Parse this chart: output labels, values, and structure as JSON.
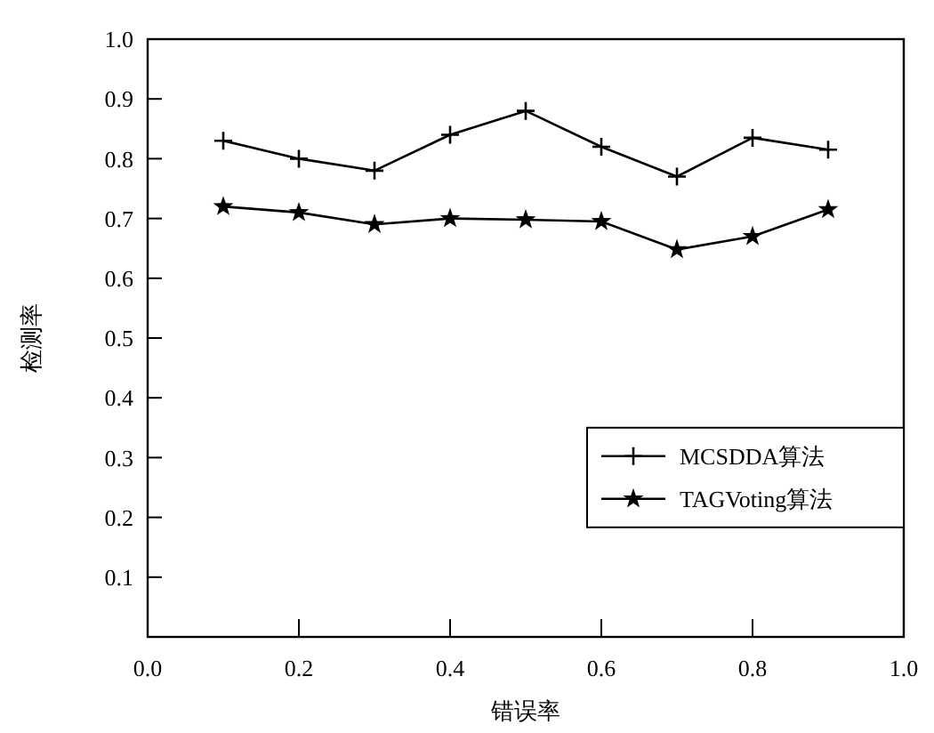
{
  "chart_data": {
    "type": "line",
    "xlabel": "错误率",
    "ylabel": "检测率",
    "x": [
      0.1,
      0.2,
      0.3,
      0.4,
      0.5,
      0.6,
      0.7,
      0.8,
      0.9
    ],
    "series": [
      {
        "name": "MCSDDA算法",
        "color": "#000000",
        "marker": "cross",
        "values": [
          0.83,
          0.8,
          0.78,
          0.84,
          0.88,
          0.82,
          0.77,
          0.835,
          0.815
        ]
      },
      {
        "name": "TAGVoting算法",
        "color": "#000000",
        "marker": "star",
        "values": [
          0.72,
          0.71,
          0.69,
          0.7,
          0.698,
          0.695,
          0.648,
          0.67,
          0.715
        ]
      }
    ],
    "xlim": [
      0,
      1
    ],
    "xticks": [
      {
        "value": 0,
        "label": "0.0"
      },
      0.2,
      0.4,
      0.6,
      0.8,
      {
        "value": 1,
        "label": "1.0"
      }
    ],
    "ylim": [
      0,
      1
    ],
    "yticks": [
      0.1,
      0.2,
      0.3,
      0.4,
      0.5,
      0.6,
      0.7,
      0.8,
      0.9,
      {
        "value": 1,
        "label": "1.0"
      }
    ],
    "grid": false,
    "legend": "right",
    "line_style": "solid"
  }
}
